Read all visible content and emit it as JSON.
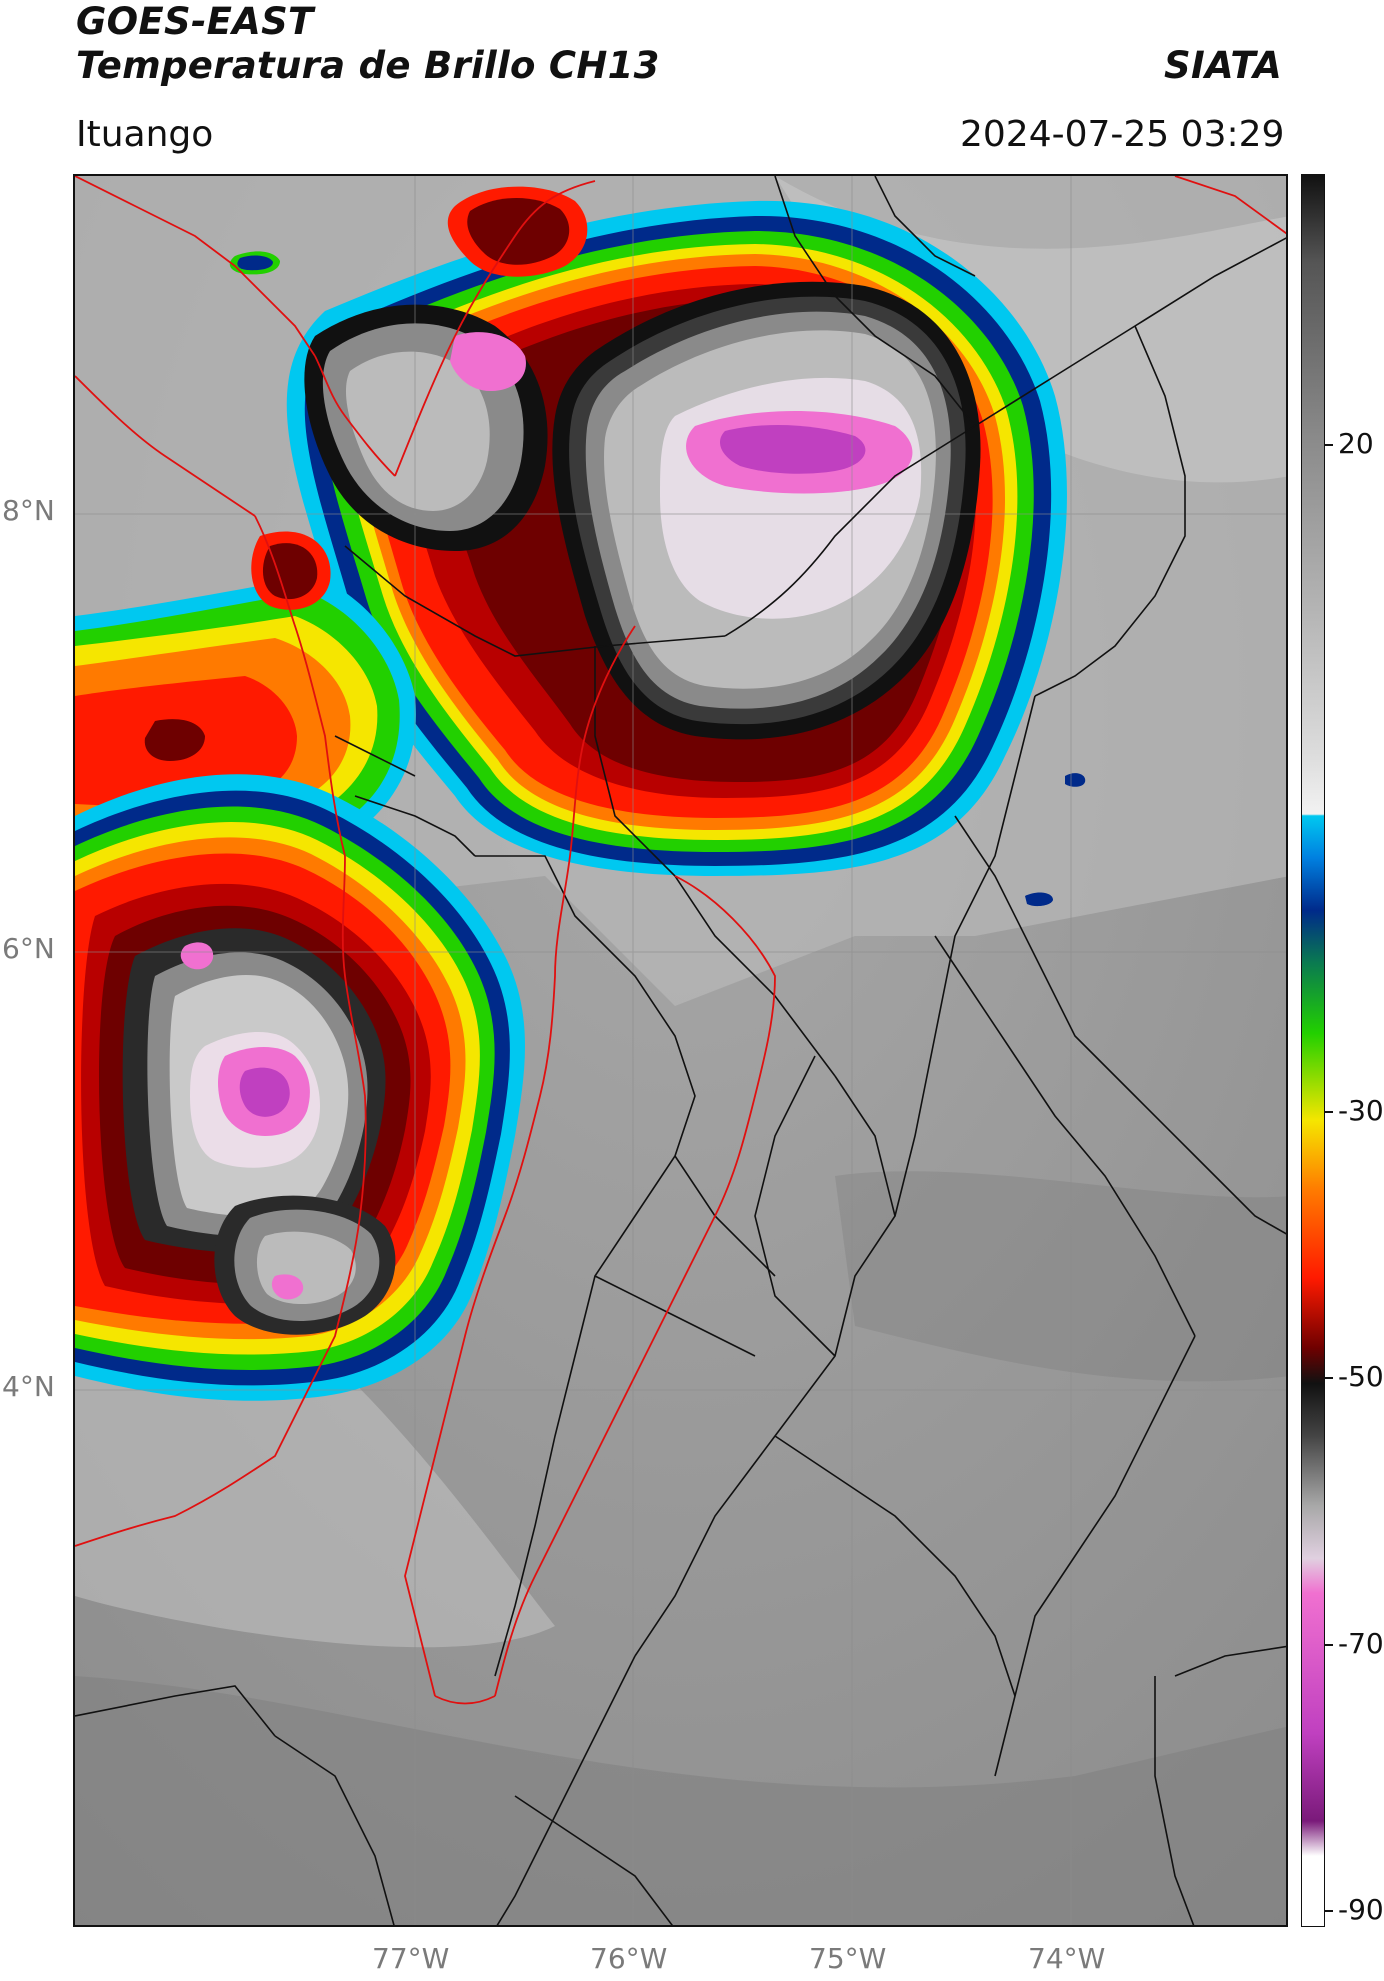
{
  "header": {
    "line1": "GOES-EAST",
    "line2": "Temperatura de Brillo CH13",
    "org": "SIATA",
    "location": "Ituango",
    "datetime": "2024-07-25 03:29"
  },
  "axes": {
    "lat_labels": [
      "8°N",
      "6°N",
      "4°N"
    ],
    "lon_labels": [
      "77°W",
      "76°W",
      "75°W",
      "74°W"
    ]
  },
  "colorbar": {
    "ticks": [
      "20",
      "-30",
      "-50",
      "-70",
      "-90"
    ],
    "colors": {
      "black": "#111111",
      "dark_red": "#6e0000",
      "red": "#ff1a00",
      "orange": "#ff7a00",
      "yellow": "#f5e600",
      "green": "#22d000",
      "dark_green": "#0a7a50",
      "navy": "#002a8a",
      "blue": "#0080e0",
      "cyan": "#00c8f0",
      "magenta": "#c040c0",
      "pink": "#f070d0"
    }
  }
}
